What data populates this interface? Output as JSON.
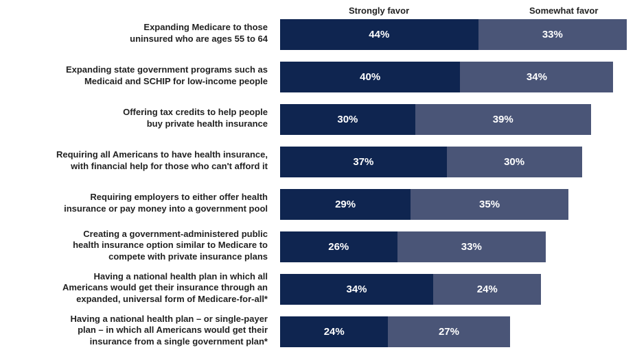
{
  "chart_data": {
    "type": "bar",
    "orientation": "horizontal",
    "stacked": true,
    "categories": [
      [
        "Expanding Medicare to those",
        "uninsured who are ages 55 to 64"
      ],
      [
        "Expanding state government programs such as",
        "Medicaid and SCHIP for low-income people"
      ],
      [
        "Offering tax credits to help people",
        "buy private health insurance"
      ],
      [
        "Requiring all Americans to have health insurance,",
        "with financial help for those who can't afford it"
      ],
      [
        "Requiring employers to either offer health",
        "insurance or pay money into a government pool"
      ],
      [
        "Creating a government-administered public",
        "health insurance option similar to Medicare to",
        "compete with private insurance plans"
      ],
      [
        "Having a national health plan in which all",
        "Americans would get their insurance through an",
        "expanded, universal form of Medicare-for-all*"
      ],
      [
        "Having a national health plan – or single-payer",
        "plan – in which all Americans would get their",
        "insurance from a single government plan*"
      ]
    ],
    "series": [
      {
        "name": "Strongly favor",
        "color": "#0f2550",
        "values": [
          44,
          40,
          30,
          37,
          29,
          26,
          34,
          24
        ],
        "labels": [
          "44%",
          "40%",
          "30%",
          "37%",
          "29%",
          "26%",
          "34%",
          "24%"
        ]
      },
      {
        "name": "Somewhat favor",
        "color": "#4a5577",
        "values": [
          33,
          34,
          39,
          30,
          35,
          33,
          24,
          27
        ],
        "labels": [
          "33%",
          "34%",
          "39%",
          "30%",
          "35%",
          "33%",
          "24%",
          "27%"
        ]
      }
    ],
    "xlim": [
      0,
      77
    ],
    "grid": false,
    "legend": "top"
  }
}
